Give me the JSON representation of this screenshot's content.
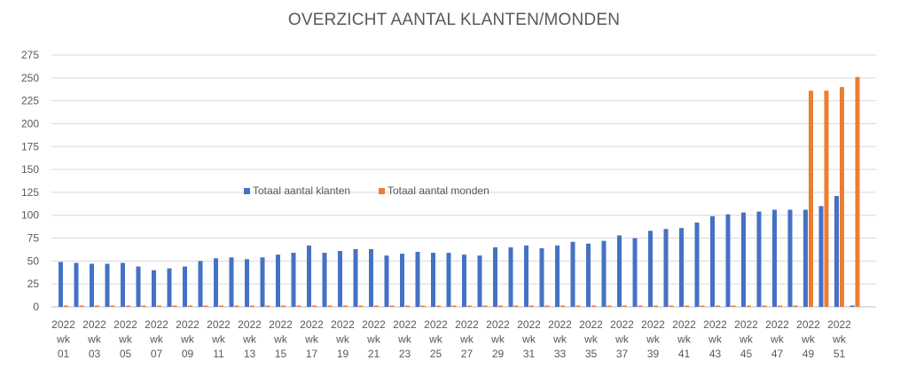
{
  "chart_data": {
    "type": "bar",
    "title": "OVERZICHT AANTAL KLANTEN/MONDEN",
    "xlabel": "",
    "ylabel": "",
    "ylim": [
      0,
      275
    ],
    "yticks": [
      0,
      25,
      50,
      75,
      100,
      125,
      150,
      175,
      200,
      225,
      250,
      275
    ],
    "grid": true,
    "legend_placement": "center",
    "categories": [
      "2022 wk 01",
      "2022 wk 02",
      "2022 wk 03",
      "2022 wk 04",
      "2022 wk 05",
      "2022 wk 06",
      "2022 wk 07",
      "2022 wk 08",
      "2022 wk 09",
      "2022 wk 10",
      "2022 wk 11",
      "2022 wk 12",
      "2022 wk 13",
      "2022 wk 14",
      "2022 wk 15",
      "2022 wk 16",
      "2022 wk 17",
      "2022 wk 18",
      "2022 wk 19",
      "2022 wk 20",
      "2022 wk 21",
      "2022 wk 22",
      "2022 wk 23",
      "2022 wk 24",
      "2022 wk 25",
      "2022 wk 26",
      "2022 wk 27",
      "2022 wk 28",
      "2022 wk 29",
      "2022 wk 30",
      "2022 wk 31",
      "2022 wk 32",
      "2022 wk 33",
      "2022 wk 34",
      "2022 wk 35",
      "2022 wk 36",
      "2022 wk 37",
      "2022 wk 38",
      "2022 wk 39",
      "2022 wk 40",
      "2022 wk 41",
      "2022 wk 42",
      "2022 wk 43",
      "2022 wk 44",
      "2022 wk 45",
      "2022 wk 46",
      "2022 wk 47",
      "2022 wk 48",
      "2022 wk 49",
      "2022 wk 50",
      "2022 wk 51",
      "2022 wk 52"
    ],
    "xtick_labels": [
      "2022 wk 01",
      "2022 wk 03",
      "2022 wk 05",
      "2022 wk 07",
      "2022 wk 09",
      "2022 wk 11",
      "2022 wk 13",
      "2022 wk 15",
      "2022 wk 17",
      "2022 wk 19",
      "2022 wk 21",
      "2022 wk 23",
      "2022 wk 25",
      "2022 wk 27",
      "2022 wk 29",
      "2022 wk 31",
      "2022 wk 33",
      "2022 wk 35",
      "2022 wk 37",
      "2022 wk 39",
      "2022 wk 41",
      "2022 wk 43",
      "2022 wk 45",
      "2022 wk 47",
      "2022 wk 49",
      "2022 wk 51"
    ],
    "series": [
      {
        "name": "Totaal aantal klanten",
        "color": "#4472C4",
        "values": [
          49,
          48,
          47,
          47,
          48,
          44,
          40,
          42,
          44,
          50,
          53,
          54,
          52,
          54,
          57,
          59,
          67,
          59,
          61,
          63,
          63,
          56,
          58,
          60,
          59,
          59,
          57,
          56,
          65,
          65,
          67,
          64,
          67,
          71,
          69,
          72,
          78,
          75,
          83,
          85,
          86,
          92,
          99,
          101,
          103,
          104,
          106,
          106,
          106,
          110,
          121,
          0
        ]
      },
      {
        "name": "Totaal aantal monden",
        "color": "#ED7D31",
        "values": [
          0,
          0,
          0,
          0,
          0,
          0,
          0,
          0,
          0,
          0,
          0,
          0,
          0,
          0,
          0,
          0,
          0,
          0,
          0,
          0,
          0,
          0,
          0,
          0,
          0,
          0,
          0,
          0,
          0,
          0,
          0,
          0,
          0,
          0,
          0,
          0,
          0,
          0,
          0,
          0,
          0,
          0,
          0,
          0,
          0,
          0,
          0,
          0,
          236,
          236,
          240,
          251
        ]
      }
    ]
  }
}
